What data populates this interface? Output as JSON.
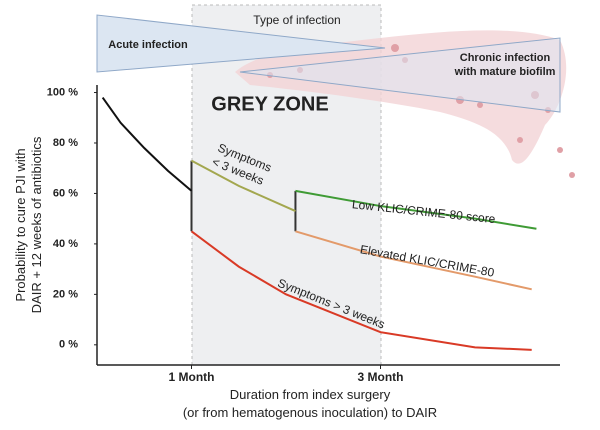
{
  "chart_data": {
    "type": "line",
    "title": "GREY ZONE",
    "header": "Type of infection",
    "infection_types": [
      "Acute infection",
      "Chronic infection with mature biofilm"
    ],
    "y_label": "Probability to cure PJI with DAIR + 12 weeks of antibiotics",
    "x_label": "Duration from index surgery (or from hematogenous inoculation) to DAIR",
    "xlim": [
      0,
      4.8
    ],
    "xticks": [
      {
        "value": 1,
        "label": "1 Month"
      },
      {
        "value": 3,
        "label": "3 Month"
      }
    ],
    "ylim": [
      -8,
      101
    ],
    "yticks": [
      {
        "value": 100,
        "label": "100 %"
      },
      {
        "value": 80,
        "label": "80 %"
      },
      {
        "value": 60,
        "label": "60 %"
      },
      {
        "value": 40,
        "label": "40 %"
      },
      {
        "value": 20,
        "label": "20 %"
      },
      {
        "value": 0,
        "label": "0 %"
      }
    ],
    "series": [
      {
        "name": "",
        "color": "#111111",
        "x": [
          0.06,
          0.25,
          0.5,
          0.75,
          1.0
        ],
        "values": [
          98,
          88,
          78,
          69,
          61
        ]
      },
      {
        "name": "Symptoms < 3 weeks",
        "color": "#a3a74f",
        "x": [
          1,
          1.5,
          2.1
        ],
        "values": [
          73,
          63,
          53
        ]
      },
      {
        "name": "Low KLIC/CRIME-80 score",
        "color": "#3f9b35",
        "x": [
          2.1,
          3,
          4,
          4.65
        ],
        "values": [
          61,
          55,
          50,
          46
        ]
      },
      {
        "name": "Elevated KLIC/CRIME-80",
        "color": "#e39a6a",
        "x": [
          2.1,
          3,
          4,
          4.6
        ],
        "values": [
          45,
          35,
          27,
          22
        ]
      },
      {
        "name": "Symptoms > 3 weeks",
        "color": "#d93a26",
        "x": [
          1,
          1.5,
          2,
          3,
          4,
          4.6
        ],
        "values": [
          45,
          31,
          20,
          5,
          -1,
          -2
        ]
      }
    ]
  }
}
